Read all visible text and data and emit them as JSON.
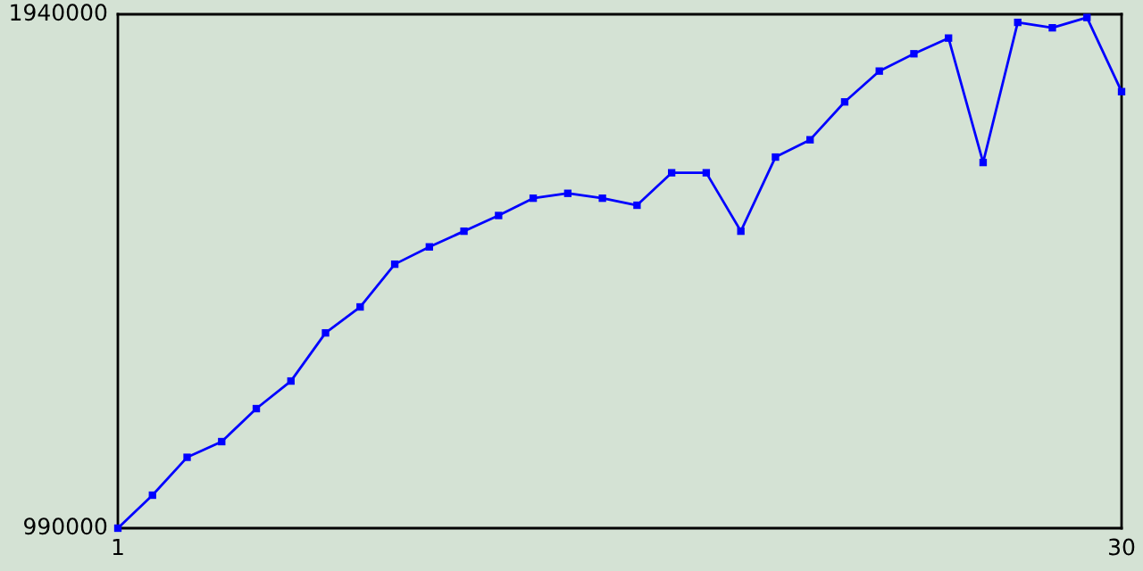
{
  "chart_data": {
    "type": "line",
    "x": [
      1,
      2,
      3,
      4,
      5,
      6,
      7,
      8,
      9,
      10,
      11,
      12,
      13,
      14,
      15,
      16,
      17,
      18,
      19,
      20,
      21,
      22,
      23,
      24,
      25,
      26,
      27,
      28,
      29,
      30
    ],
    "series": [
      {
        "color": "#0000ff",
        "values": [
          990000,
          1051000,
          1121000,
          1150000,
          1211000,
          1262000,
          1351000,
          1399000,
          1478000,
          1510000,
          1539000,
          1568000,
          1600000,
          1609000,
          1600000,
          1587000,
          1647000,
          1647000,
          1539000,
          1676000,
          1708000,
          1778000,
          1835000,
          1867000,
          1896000,
          1666000,
          1925000,
          1915000,
          1934000,
          1797000
        ]
      }
    ],
    "xlim": [
      1,
      30
    ],
    "xticks": [
      1,
      30
    ],
    "ylim": [
      990000,
      1940000
    ],
    "yticks": [
      990000,
      1940000
    ],
    "marker": "square",
    "line_style": "solid"
  }
}
